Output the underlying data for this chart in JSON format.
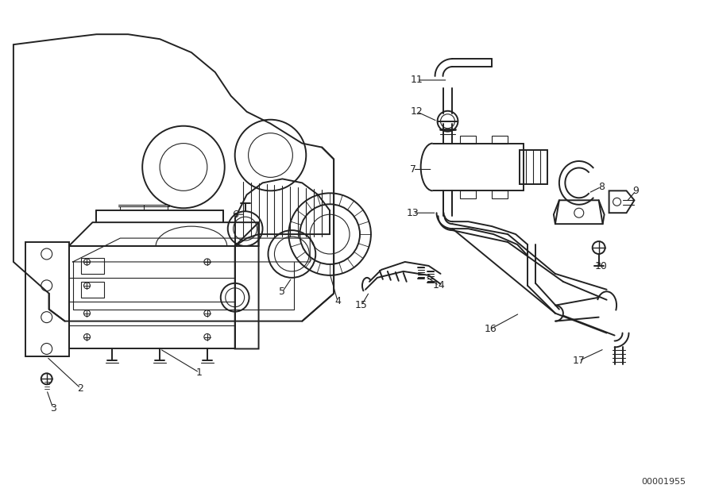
{
  "diagram_id": "00001955",
  "bg_color": "#ffffff",
  "line_color": "#222222",
  "fig_width": 9.0,
  "fig_height": 6.35,
  "dpi": 100
}
